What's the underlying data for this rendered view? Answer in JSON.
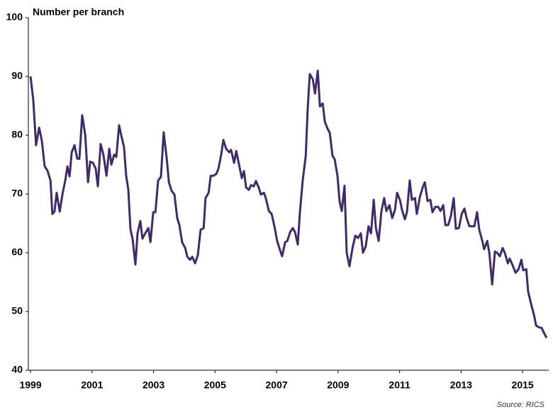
{
  "chart_data": {
    "type": "line",
    "y_label": "Number per branch",
    "source": "Source: RICS",
    "x": [
      1999.0,
      1999.09,
      1999.18,
      1999.28,
      1999.37,
      1999.46,
      1999.55,
      1999.65,
      1999.71,
      1999.78,
      1999.85,
      1999.95,
      2000.04,
      2000.13,
      2000.2,
      2000.27,
      2000.34,
      2000.43,
      2000.52,
      2000.59,
      2000.68,
      2000.78,
      2000.87,
      2000.94,
      2001.03,
      2001.12,
      2001.19,
      2001.28,
      2001.37,
      2001.47,
      2001.56,
      2001.63,
      2001.72,
      2001.79,
      2001.88,
      2001.95,
      2002.04,
      2002.11,
      2002.18,
      2002.25,
      2002.32,
      2002.41,
      2002.48,
      2002.57,
      2002.64,
      2002.73,
      2002.83,
      2002.9,
      2002.99,
      2003.06,
      2003.15,
      2003.24,
      2003.33,
      2003.43,
      2003.5,
      2003.59,
      2003.68,
      2003.77,
      2003.84,
      2003.93,
      2004.03,
      2004.1,
      2004.19,
      2004.26,
      2004.35,
      2004.44,
      2004.53,
      2004.63,
      2004.69,
      2004.79,
      2004.86,
      2004.95,
      2005.04,
      2005.11,
      2005.2,
      2005.27,
      2005.36,
      2005.46,
      2005.52,
      2005.62,
      2005.69,
      2005.78,
      2005.87,
      2005.94,
      2006.01,
      2006.1,
      2006.17,
      2006.26,
      2006.33,
      2006.42,
      2006.49,
      2006.59,
      2006.65,
      2006.75,
      2006.84,
      2006.93,
      2007.02,
      2007.09,
      2007.18,
      2007.28,
      2007.35,
      2007.44,
      2007.53,
      2007.6,
      2007.69,
      2007.76,
      2007.85,
      2007.95,
      2008.01,
      2008.08,
      2008.18,
      2008.25,
      2008.34,
      2008.41,
      2008.5,
      2008.57,
      2008.66,
      2008.73,
      2008.82,
      2008.89,
      2008.98,
      2009.05,
      2009.12,
      2009.21,
      2009.28,
      2009.37,
      2009.47,
      2009.56,
      2009.65,
      2009.74,
      2009.81,
      2009.9,
      2009.99,
      2010.07,
      2010.16,
      2010.23,
      2010.32,
      2010.41,
      2010.5,
      2010.57,
      2010.67,
      2010.76,
      2010.85,
      2010.92,
      2011.01,
      2011.08,
      2011.17,
      2011.24,
      2011.33,
      2011.4,
      2011.5,
      2011.56,
      2011.66,
      2011.75,
      2011.82,
      2011.91,
      2012.0,
      2012.07,
      2012.16,
      2012.26,
      2012.33,
      2012.42,
      2012.49,
      2012.58,
      2012.67,
      2012.76,
      2012.83,
      2012.93,
      2013.02,
      2013.11,
      2013.18,
      2013.27,
      2013.34,
      2013.43,
      2013.52,
      2013.59,
      2013.69,
      2013.75,
      2013.85,
      2013.92,
      2014.01,
      2014.1,
      2014.17,
      2014.26,
      2014.35,
      2014.42,
      2014.52,
      2014.58,
      2014.68,
      2014.77,
      2014.87,
      2014.96,
      2015.02,
      2015.12,
      2015.18,
      2015.28,
      2015.37,
      2015.44,
      2015.53,
      2015.62,
      2015.69,
      2015.78
    ],
    "series": [
      {
        "color": "#3f2a6b",
        "values": [
          90,
          86,
          78.3,
          81.3,
          79,
          74.7,
          74,
          72.3,
          66.6,
          67,
          70.2,
          67,
          70,
          72.3,
          74.7,
          73,
          77.1,
          78.3,
          76,
          76,
          83.4,
          80,
          72,
          75.5,
          75.3,
          74.3,
          71.3,
          78.5,
          76.7,
          73.1,
          77.7,
          75,
          76.7,
          76.3,
          81.7,
          80,
          78,
          73.1,
          70.7,
          64,
          62.3,
          58,
          63.3,
          65.4,
          62.4,
          63.3,
          64.2,
          61.8,
          66.9,
          66.9,
          72.3,
          72.9,
          80.5,
          76,
          72,
          70.5,
          69.9,
          65.9,
          64.7,
          61.8,
          60.8,
          59.3,
          58.8,
          59.3,
          58.2,
          59.6,
          63.9,
          64.2,
          69.3,
          70.2,
          73.1,
          73.1,
          73.4,
          74.3,
          76.7,
          79.2,
          77.7,
          77.1,
          77.5,
          75.3,
          77.3,
          75,
          72.7,
          73.9,
          71.1,
          70.7,
          71.5,
          71.3,
          72.2,
          71.1,
          69.9,
          70.2,
          69.3,
          67.1,
          66.6,
          64.5,
          62,
          60.8,
          59.4,
          61.8,
          62,
          63.5,
          64.2,
          63.5,
          61.4,
          66.9,
          72.3,
          76.5,
          84.3,
          90.4,
          89.5,
          87.1,
          91,
          84.9,
          85.4,
          82.3,
          81.1,
          80.4,
          76.5,
          75.9,
          73.1,
          68.7,
          67.1,
          71.4,
          60,
          57.7,
          60.8,
          62.9,
          62.5,
          63.3,
          60,
          61.1,
          64.5,
          63.3,
          69,
          64.2,
          62,
          67.1,
          69.3,
          67.1,
          68.1,
          65.9,
          67.3,
          70.2,
          69,
          67.3,
          65.7,
          66.9,
          72.3,
          69,
          69.3,
          66.6,
          69.5,
          71.1,
          72,
          68.8,
          69,
          66.9,
          67.8,
          67.8,
          67.1,
          68.1,
          64.7,
          64.7,
          66.3,
          69.3,
          64.1,
          64.2,
          66.6,
          67.5,
          65.9,
          64.5,
          64.5,
          64.5,
          66.9,
          63.9,
          62,
          60.6,
          62,
          59.9,
          54.6,
          60.2,
          60,
          59.4,
          60.8,
          60,
          58.2,
          59,
          57.8,
          56.6,
          57.2,
          58.8,
          57,
          57.2,
          53.4,
          51.2,
          49.4,
          47.6,
          47.3,
          47.2,
          46.4,
          45.5
        ]
      }
    ],
    "xlim": [
      1998.93,
      2015.85
    ],
    "xticks": [
      1999,
      2001,
      2003,
      2005,
      2007,
      2009,
      2011,
      2013,
      2015
    ],
    "ylim": [
      40,
      100
    ],
    "yticks": [
      40,
      50,
      60,
      70,
      80,
      90,
      100
    ]
  }
}
